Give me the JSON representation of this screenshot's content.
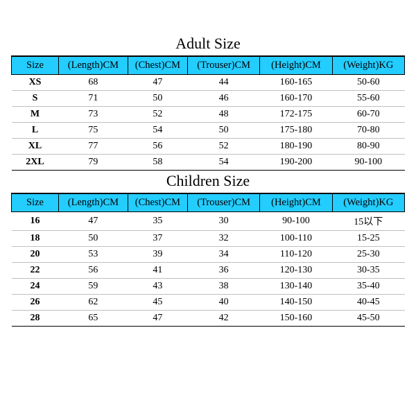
{
  "styling": {
    "header_bg": "#23cdff",
    "border_color": "#000000",
    "row_divider_color": "#bfbfbf",
    "background_color": "#ffffff",
    "title_fontsize": 22,
    "header_fontsize": 14.5,
    "cell_fontsize": 14,
    "font_family": "Times New Roman"
  },
  "adult": {
    "title": "Adult Size",
    "columns": [
      "Size",
      "(Length)CM",
      "(Chest)CM",
      "(Trouser)CM",
      "(Height)CM",
      "(Weight)KG"
    ],
    "rows": [
      [
        "XS",
        "68",
        "47",
        "44",
        "160-165",
        "50-60"
      ],
      [
        "S",
        "71",
        "50",
        "46",
        "160-170",
        "55-60"
      ],
      [
        "M",
        "73",
        "52",
        "48",
        "172-175",
        "60-70"
      ],
      [
        "L",
        "75",
        "54",
        "50",
        "175-180",
        "70-80"
      ],
      [
        "XL",
        "77",
        "56",
        "52",
        "180-190",
        "80-90"
      ],
      [
        "2XL",
        "79",
        "58",
        "54",
        "190-200",
        "90-100"
      ]
    ]
  },
  "children": {
    "title": "Children Size",
    "columns": [
      "Size",
      "(Length)CM",
      "(Chest)CM",
      "(Trouser)CM",
      "(Height)CM",
      "(Weight)KG"
    ],
    "rows": [
      [
        "16",
        "47",
        "35",
        "30",
        "90-100",
        "15以下"
      ],
      [
        "18",
        "50",
        "37",
        "32",
        "100-110",
        "15-25"
      ],
      [
        "20",
        "53",
        "39",
        "34",
        "110-120",
        "25-30"
      ],
      [
        "22",
        "56",
        "41",
        "36",
        "120-130",
        "30-35"
      ],
      [
        "24",
        "59",
        "43",
        "38",
        "130-140",
        "35-40"
      ],
      [
        "26",
        "62",
        "45",
        "40",
        "140-150",
        "40-45"
      ],
      [
        "28",
        "65",
        "47",
        "42",
        "150-160",
        "45-50"
      ]
    ]
  }
}
